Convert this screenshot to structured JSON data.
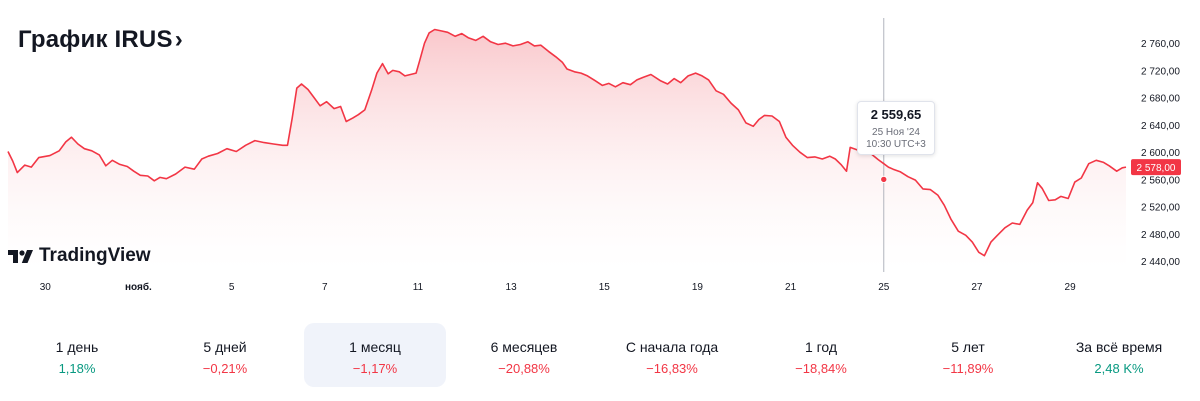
{
  "header": {
    "title": "График IRUS",
    "chevron": "›"
  },
  "logo": {
    "text": "TradingView",
    "icon": "tradingview-logo-icon"
  },
  "colors": {
    "line": "#f23645",
    "fill_top": "#f9c5c9",
    "positive": "#089981",
    "negative": "#f23645",
    "crosshair": "#b2b5be"
  },
  "tooltip": {
    "value": "2 559,65",
    "date": "25 Ноя '24",
    "time": "10:30 UTC+3"
  },
  "price_label": "2 578,00",
  "chart_data": {
    "type": "area",
    "title": "График IRUS",
    "x_ticks": [
      {
        "label": "30",
        "pos": 0.4
      },
      {
        "label": "нояб.",
        "pos": 1.4
      },
      {
        "label": "5",
        "pos": 2.4
      },
      {
        "label": "7",
        "pos": 3.4
      },
      {
        "label": "11",
        "pos": 4.4
      },
      {
        "label": "13",
        "pos": 5.4
      },
      {
        "label": "15",
        "pos": 6.4
      },
      {
        "label": "19",
        "pos": 7.4
      },
      {
        "label": "21",
        "pos": 8.4
      },
      {
        "label": "25",
        "pos": 9.4
      },
      {
        "label": "27",
        "pos": 10.4
      },
      {
        "label": "29",
        "pos": 11.4
      }
    ],
    "y_ticks": [
      "2 760,00",
      "2 720,00",
      "2 680,00",
      "2 640,00",
      "2 600,00",
      "2 560,00",
      "2 520,00",
      "2 480,00",
      "2 440,00"
    ],
    "y_tick_values": [
      2760,
      2720,
      2680,
      2640,
      2600,
      2560,
      2520,
      2480,
      2440
    ],
    "ylim": [
      2427,
      2794
    ],
    "xlim": [
      0,
      12
    ],
    "points": [
      [
        0.0,
        2601
      ],
      [
        0.05,
        2587
      ],
      [
        0.1,
        2570
      ],
      [
        0.18,
        2581
      ],
      [
        0.25,
        2578
      ],
      [
        0.33,
        2592
      ],
      [
        0.45,
        2595
      ],
      [
        0.55,
        2602
      ],
      [
        0.62,
        2615
      ],
      [
        0.68,
        2622
      ],
      [
        0.75,
        2612
      ],
      [
        0.82,
        2605
      ],
      [
        0.9,
        2602
      ],
      [
        0.98,
        2596
      ],
      [
        1.05,
        2580
      ],
      [
        1.12,
        2588
      ],
      [
        1.2,
        2582
      ],
      [
        1.28,
        2579
      ],
      [
        1.35,
        2572
      ],
      [
        1.42,
        2566
      ],
      [
        1.5,
        2565
      ],
      [
        1.57,
        2558
      ],
      [
        1.63,
        2563
      ],
      [
        1.7,
        2561
      ],
      [
        1.8,
        2568
      ],
      [
        1.9,
        2578
      ],
      [
        2.0,
        2575
      ],
      [
        2.08,
        2590
      ],
      [
        2.15,
        2594
      ],
      [
        2.25,
        2598
      ],
      [
        2.35,
        2605
      ],
      [
        2.45,
        2601
      ],
      [
        2.55,
        2610
      ],
      [
        2.65,
        2617
      ],
      [
        2.75,
        2614
      ],
      [
        2.85,
        2612
      ],
      [
        2.95,
        2610
      ],
      [
        3.0,
        2610
      ],
      [
        3.05,
        2650
      ],
      [
        3.1,
        2694
      ],
      [
        3.15,
        2700
      ],
      [
        3.22,
        2692
      ],
      [
        3.28,
        2681
      ],
      [
        3.35,
        2668
      ],
      [
        3.42,
        2674
      ],
      [
        3.5,
        2664
      ],
      [
        3.57,
        2667
      ],
      [
        3.63,
        2645
      ],
      [
        3.7,
        2650
      ],
      [
        3.76,
        2655
      ],
      [
        3.83,
        2662
      ],
      [
        3.9,
        2690
      ],
      [
        3.96,
        2716
      ],
      [
        4.02,
        2730
      ],
      [
        4.08,
        2715
      ],
      [
        4.13,
        2720
      ],
      [
        4.2,
        2718
      ],
      [
        4.26,
        2712
      ],
      [
        4.32,
        2714
      ],
      [
        4.38,
        2716
      ],
      [
        4.42,
        2735
      ],
      [
        4.47,
        2760
      ],
      [
        4.52,
        2775
      ],
      [
        4.58,
        2780
      ],
      [
        4.65,
        2778
      ],
      [
        4.72,
        2776
      ],
      [
        4.8,
        2770
      ],
      [
        4.87,
        2774
      ],
      [
        4.94,
        2768
      ],
      [
        5.02,
        2764
      ],
      [
        5.1,
        2770
      ],
      [
        5.18,
        2762
      ],
      [
        5.26,
        2758
      ],
      [
        5.34,
        2760
      ],
      [
        5.42,
        2756
      ],
      [
        5.5,
        2758
      ],
      [
        5.58,
        2762
      ],
      [
        5.65,
        2756
      ],
      [
        5.72,
        2757
      ],
      [
        5.8,
        2748
      ],
      [
        5.88,
        2740
      ],
      [
        5.95,
        2732
      ],
      [
        6.0,
        2722
      ],
      [
        6.08,
        2718
      ],
      [
        6.15,
        2716
      ],
      [
        6.22,
        2712
      ],
      [
        6.3,
        2705
      ],
      [
        6.38,
        2698
      ],
      [
        6.45,
        2701
      ],
      [
        6.52,
        2696
      ],
      [
        6.6,
        2702
      ],
      [
        6.68,
        2699
      ],
      [
        6.75,
        2706
      ],
      [
        6.82,
        2710
      ],
      [
        6.9,
        2714
      ],
      [
        7.0,
        2705
      ],
      [
        7.08,
        2700
      ],
      [
        7.15,
        2708
      ],
      [
        7.22,
        2702
      ],
      [
        7.3,
        2712
      ],
      [
        7.38,
        2716
      ],
      [
        7.45,
        2712
      ],
      [
        7.52,
        2706
      ],
      [
        7.6,
        2690
      ],
      [
        7.68,
        2685
      ],
      [
        7.76,
        2672
      ],
      [
        7.84,
        2662
      ],
      [
        7.92,
        2643
      ],
      [
        8.0,
        2638
      ],
      [
        8.06,
        2648
      ],
      [
        8.12,
        2654
      ],
      [
        8.2,
        2653
      ],
      [
        8.28,
        2645
      ],
      [
        8.35,
        2622
      ],
      [
        8.42,
        2610
      ],
      [
        8.5,
        2600
      ],
      [
        8.58,
        2592
      ],
      [
        8.66,
        2593
      ],
      [
        8.74,
        2590
      ],
      [
        8.82,
        2594
      ],
      [
        8.88,
        2590
      ],
      [
        8.94,
        2582
      ],
      [
        9.0,
        2572
      ],
      [
        9.04,
        2607
      ],
      [
        9.1,
        2604
      ],
      [
        9.18,
        2600
      ],
      [
        9.26,
        2598
      ],
      [
        9.34,
        2589
      ],
      [
        9.4,
        2583
      ],
      [
        9.45,
        2578
      ],
      [
        9.5,
        2575
      ],
      [
        9.58,
        2571
      ],
      [
        9.66,
        2564
      ],
      [
        9.74,
        2559
      ],
      [
        9.82,
        2546
      ],
      [
        9.9,
        2545
      ],
      [
        9.98,
        2537
      ],
      [
        10.05,
        2522
      ],
      [
        10.12,
        2502
      ],
      [
        10.2,
        2484
      ],
      [
        10.28,
        2478
      ],
      [
        10.35,
        2468
      ],
      [
        10.42,
        2453
      ],
      [
        10.48,
        2448
      ],
      [
        10.55,
        2468
      ],
      [
        10.62,
        2478
      ],
      [
        10.7,
        2489
      ],
      [
        10.78,
        2496
      ],
      [
        10.86,
        2494
      ],
      [
        10.94,
        2515
      ],
      [
        11.0,
        2526
      ],
      [
        11.05,
        2555
      ],
      [
        11.1,
        2547
      ],
      [
        11.17,
        2529
      ],
      [
        11.24,
        2530
      ],
      [
        11.3,
        2535
      ],
      [
        11.38,
        2532
      ],
      [
        11.45,
        2556
      ],
      [
        11.52,
        2562
      ],
      [
        11.6,
        2583
      ],
      [
        11.68,
        2588
      ],
      [
        11.76,
        2585
      ],
      [
        11.82,
        2580
      ],
      [
        11.9,
        2572
      ],
      [
        11.96,
        2577
      ],
      [
        12.0,
        2578
      ]
    ],
    "crosshair_x": 9.4,
    "marker": [
      9.4,
      2560
    ],
    "last_value": 2578
  },
  "periods": [
    {
      "label": "1 день",
      "value": "1,18%",
      "sign": "pos",
      "active": false
    },
    {
      "label": "5 дней",
      "value": "−0,21%",
      "sign": "neg",
      "active": false
    },
    {
      "label": "1 месяц",
      "value": "−1,17%",
      "sign": "neg",
      "active": true
    },
    {
      "label": "6 месяцев",
      "value": "−20,88%",
      "sign": "neg",
      "active": false
    },
    {
      "label": "С начала года",
      "value": "−16,83%",
      "sign": "neg",
      "active": false
    },
    {
      "label": "1 год",
      "value": "−18,84%",
      "sign": "neg",
      "active": false
    },
    {
      "label": "5 лет",
      "value": "−11,89%",
      "sign": "neg",
      "active": false
    },
    {
      "label": "За всё время",
      "value": "2,48 K%",
      "sign": "pos",
      "active": false
    }
  ]
}
